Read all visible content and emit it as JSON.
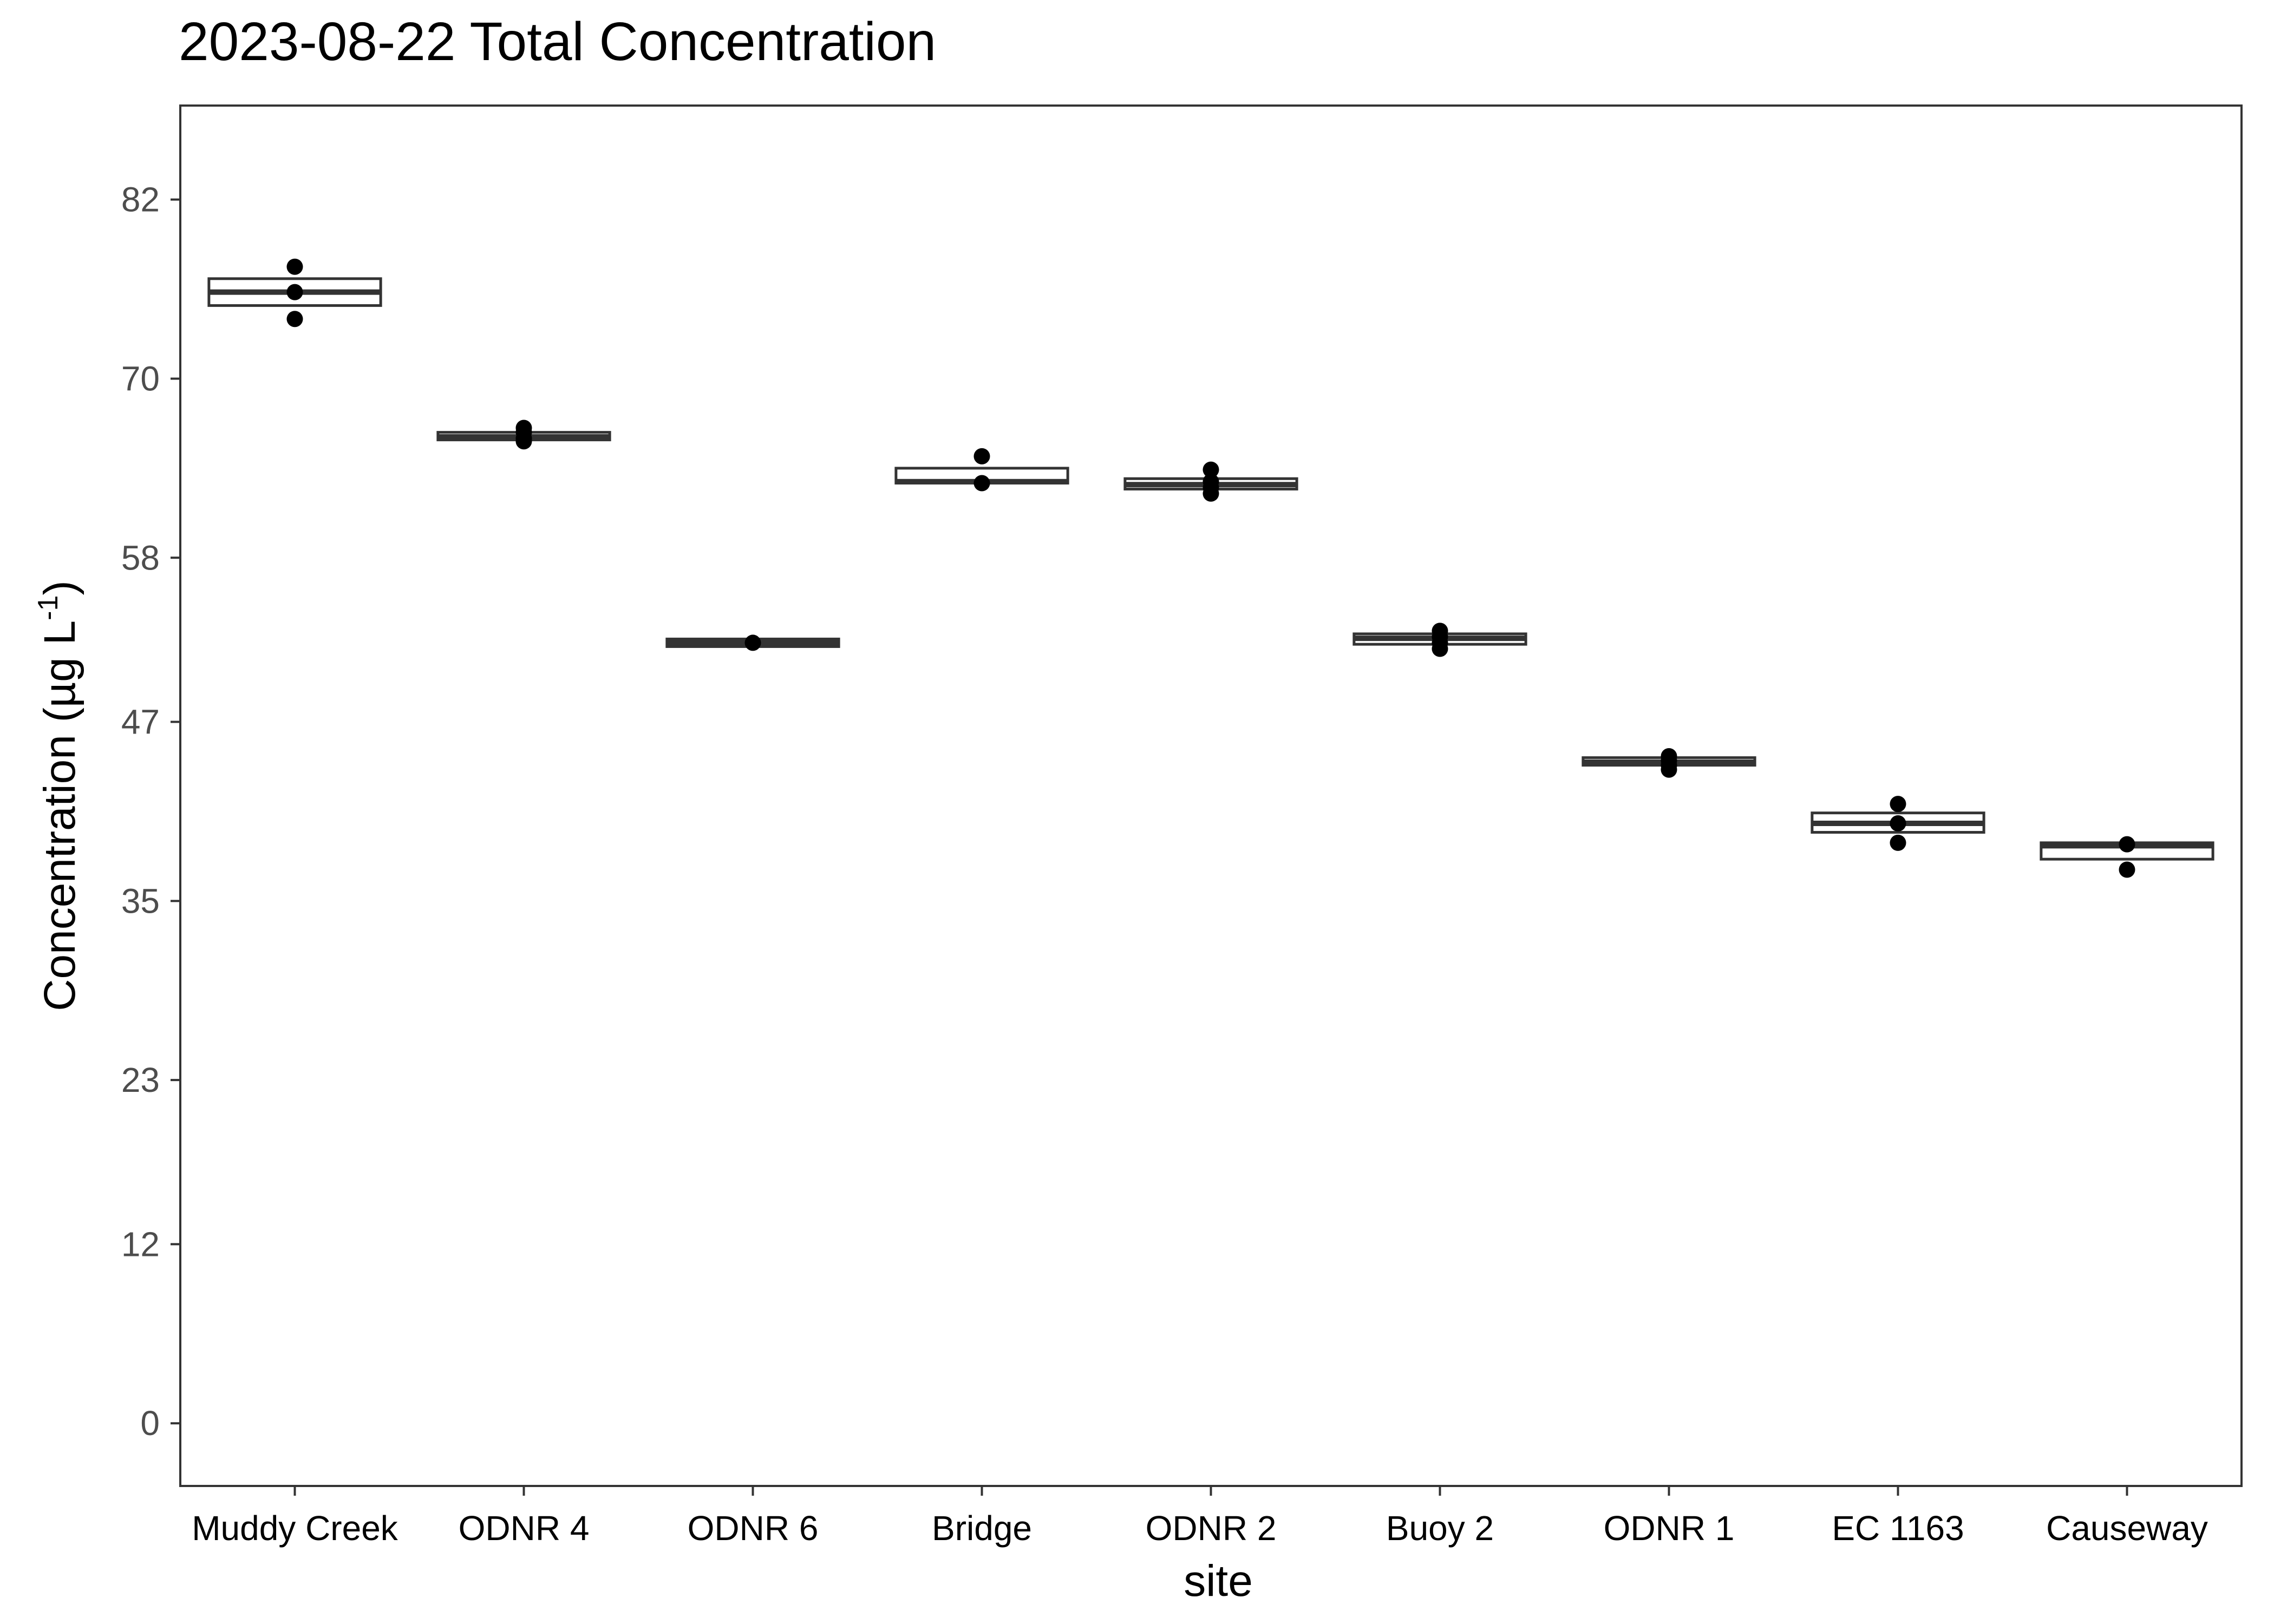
{
  "chart_data": {
    "type": "box",
    "title": "2023-08-22 Total Concentration",
    "xlabel": "site",
    "ylabel_main": "Concentration (µg L",
    "ylabel_sup": "-1",
    "ylabel_close": ")",
    "ylim": [
      -4.2,
      88.3
    ],
    "yticks": [
      0,
      12,
      23,
      35,
      47,
      58,
      70,
      82
    ],
    "ytick_labels": [
      "0",
      "12",
      "23",
      "35",
      "47",
      "58",
      "70",
      "82"
    ],
    "categories": [
      "Muddy Creek",
      "ODNR 4",
      "ODNR 6",
      "Bridge",
      "ODNR 2",
      "Buoy 2",
      "ODNR 1",
      "EC 1163",
      "Causeway"
    ],
    "boxes": [
      {
        "site": "Muddy Creek",
        "q1": 74.9,
        "median": 75.8,
        "q3": 76.7,
        "points": [
          74.0,
          75.8,
          77.5
        ]
      },
      {
        "site": "ODNR 4",
        "q1": 65.9,
        "median": 66.1,
        "q3": 66.4,
        "points": [
          65.8,
          66.0,
          66.4,
          66.7
        ]
      },
      {
        "site": "ODNR 6",
        "q1": 52.1,
        "median": 52.3,
        "q3": 52.5,
        "points": [
          52.3
        ]
      },
      {
        "site": "Bridge",
        "q1": 63.0,
        "median": 63.1,
        "q3": 64.0,
        "points": [
          63.0,
          64.8
        ]
      },
      {
        "site": "ODNR 2",
        "q1": 62.6,
        "median": 62.9,
        "q3": 63.3,
        "points": [
          62.3,
          62.7,
          63.1,
          63.9
        ]
      },
      {
        "site": "Buoy 2",
        "q1": 52.2,
        "median": 52.6,
        "q3": 52.9,
        "points": [
          51.9,
          52.3,
          52.7,
          53.1
        ]
      },
      {
        "site": "ODNR 1",
        "q1": 44.1,
        "median": 44.3,
        "q3": 44.6,
        "points": [
          43.8,
          44.1,
          44.4,
          44.7
        ]
      },
      {
        "site": "EC 1163",
        "q1": 39.6,
        "median": 40.2,
        "q3": 40.9,
        "points": [
          38.9,
          40.2,
          41.5
        ]
      },
      {
        "site": "Causeway",
        "q1": 37.8,
        "median": 38.7,
        "q3": 38.9,
        "points": [
          37.1,
          38.8
        ]
      }
    ],
    "grid": false,
    "legend": "none",
    "colors": {
      "box_edge": "#333333",
      "box_fill": "#ffffff",
      "point": "#000000",
      "panel_border": "#333333",
      "tick_text": "#4d4d4d"
    }
  }
}
